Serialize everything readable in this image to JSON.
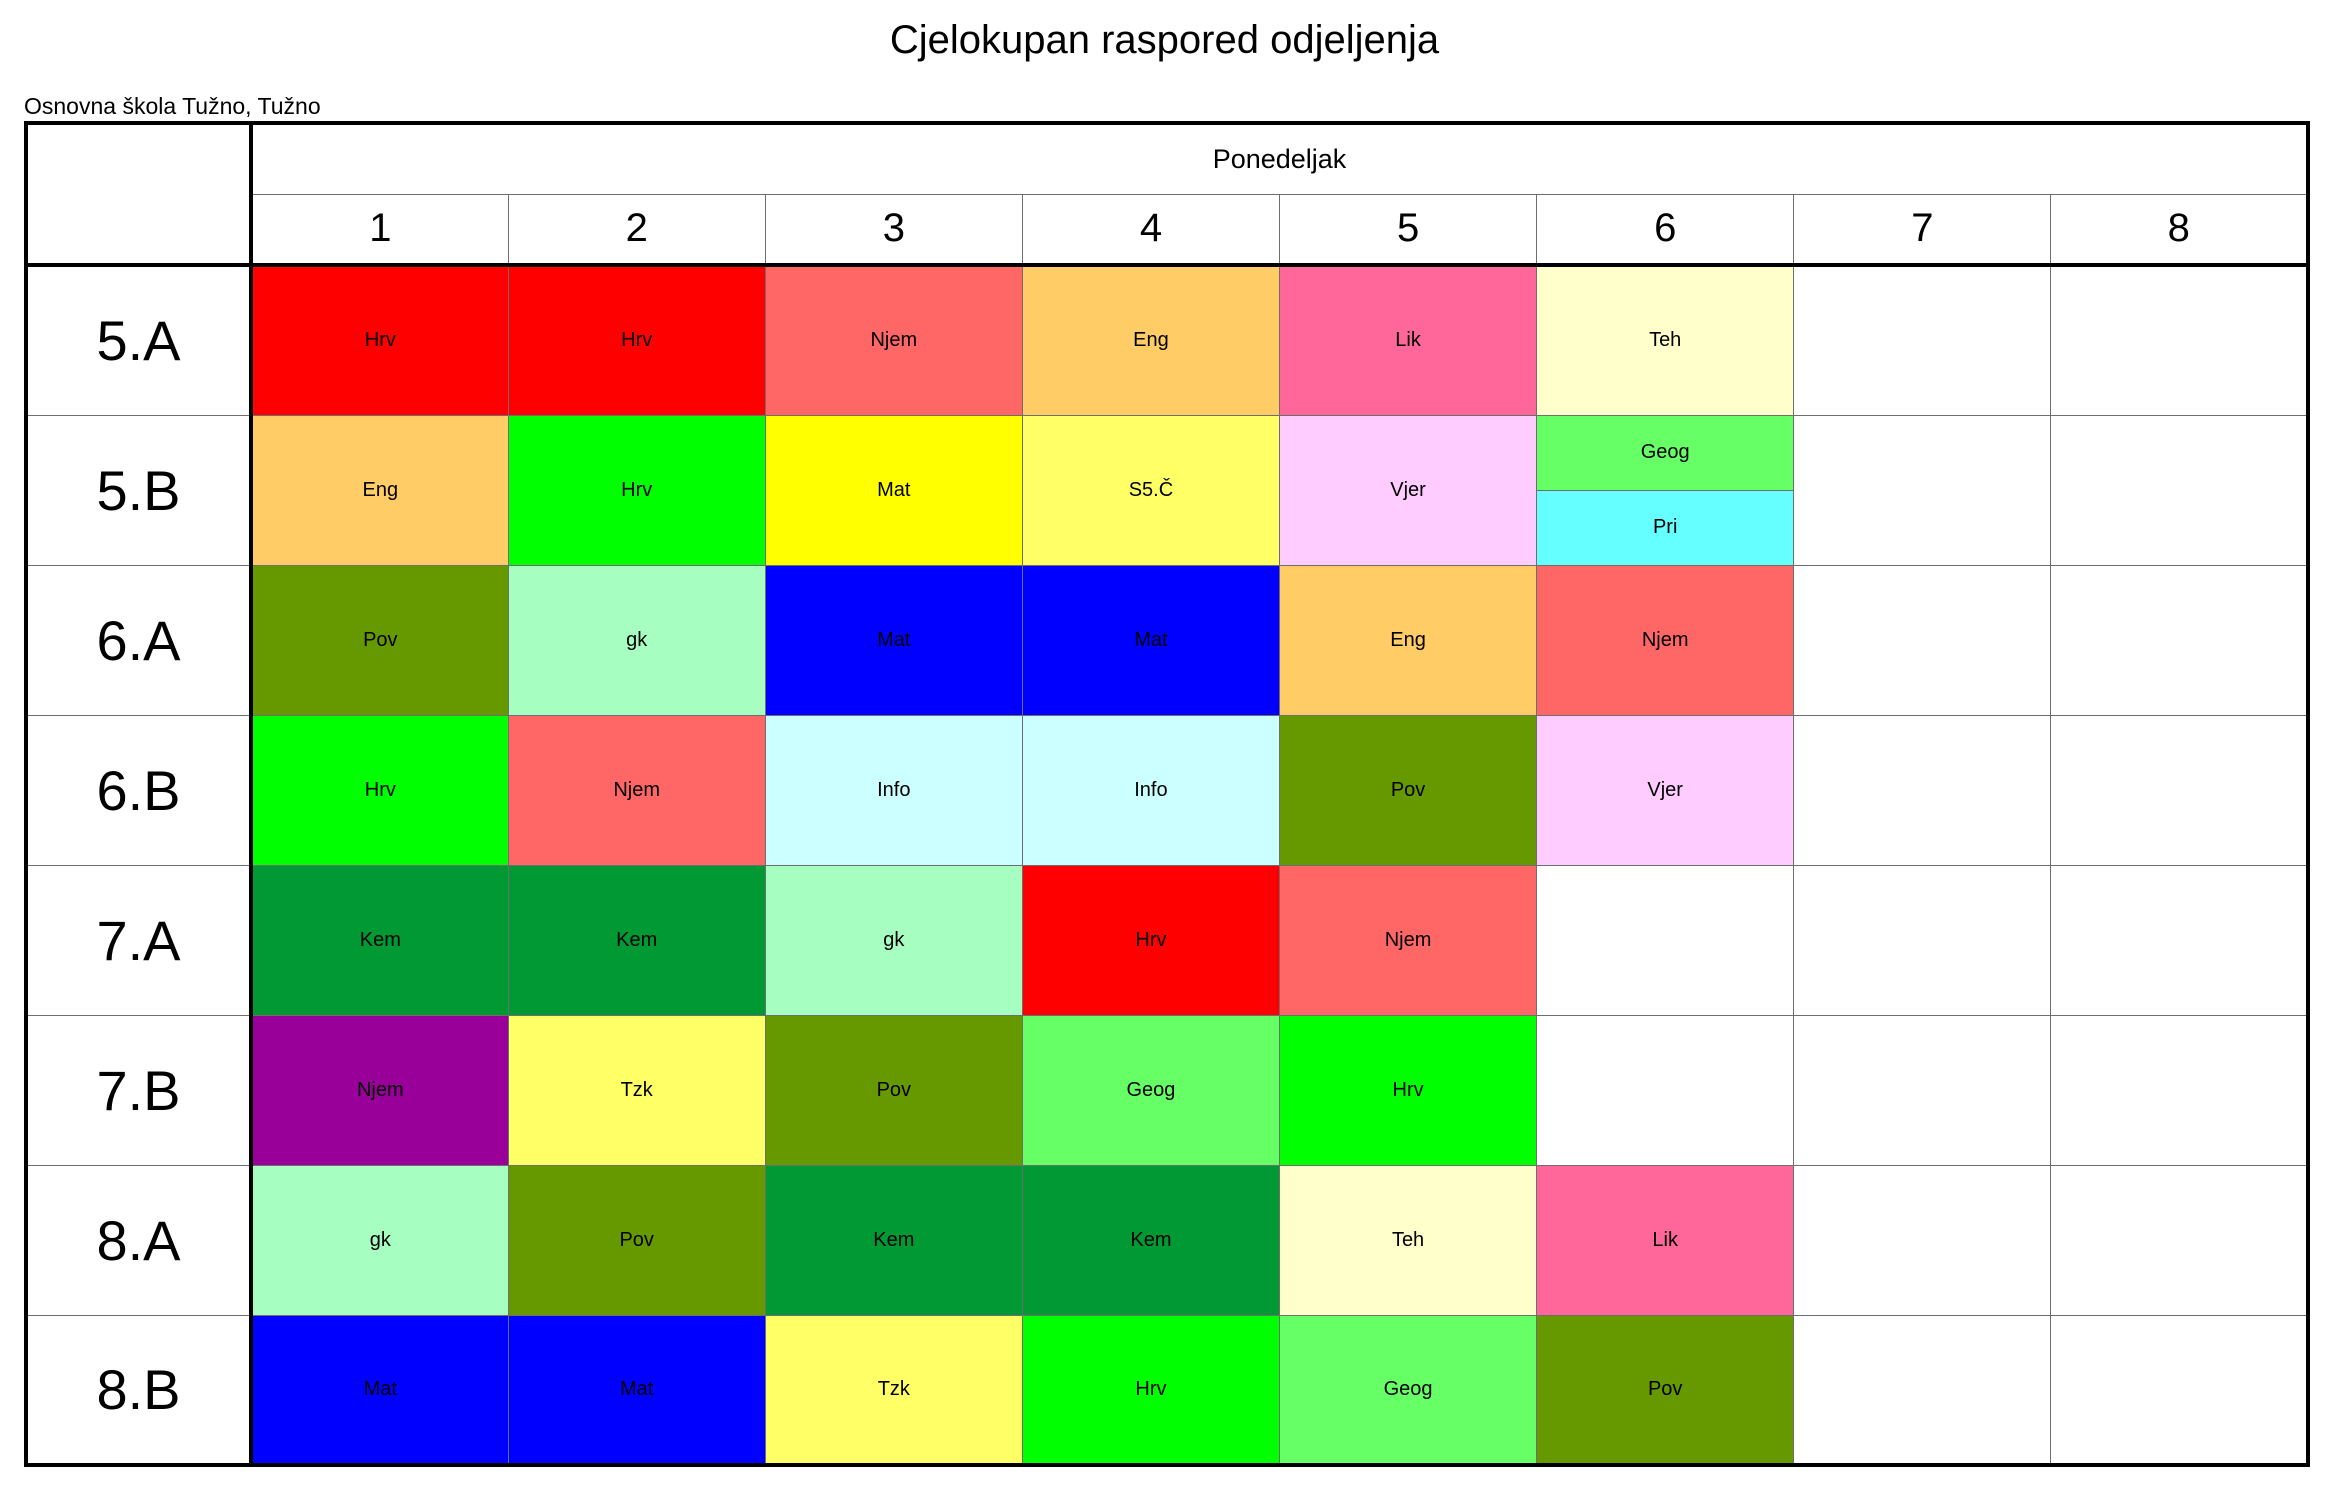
{
  "header": {
    "title": "Cjelokupan raspored odjeljenja",
    "school": "Osnovna škola Tužno, Tužno"
  },
  "timetable": {
    "day": "Ponedeljak",
    "periods": [
      "1",
      "2",
      "3",
      "4",
      "5",
      "6",
      "7",
      "8"
    ],
    "rows": [
      {
        "class": "5.A",
        "cells": [
          {
            "text": "Hrv",
            "color": "#ff0000"
          },
          {
            "text": "Hrv",
            "color": "#ff0000"
          },
          {
            "text": "Njem",
            "color": "#ff6666"
          },
          {
            "text": "Eng",
            "color": "#ffcc66"
          },
          {
            "text": "Lik",
            "color": "#ff6699"
          },
          {
            "text": "Teh",
            "color": "#ffffcc"
          },
          {
            "text": "",
            "color": ""
          },
          {
            "text": "",
            "color": ""
          }
        ]
      },
      {
        "class": "5.B",
        "cells": [
          {
            "text": "Eng",
            "color": "#ffcc66"
          },
          {
            "text": "Hrv",
            "color": "#00ff00"
          },
          {
            "text": "Mat",
            "color": "#ffff00"
          },
          {
            "text": "S5.Č",
            "color": "#ffff66"
          },
          {
            "text": "Vjer",
            "color": "#ffccff"
          },
          {
            "split": [
              {
                "text": "Geog",
                "color": "#66ff66"
              },
              {
                "text": "Pri",
                "color": "#66ffff"
              }
            ]
          },
          {
            "text": "",
            "color": ""
          },
          {
            "text": "",
            "color": ""
          }
        ]
      },
      {
        "class": "6.A",
        "cells": [
          {
            "text": "Pov",
            "color": "#669900"
          },
          {
            "text": "gk",
            "color": "#a6ffc0"
          },
          {
            "text": "Mat",
            "color": "#0000ff"
          },
          {
            "text": "Mat",
            "color": "#0000ff"
          },
          {
            "text": "Eng",
            "color": "#ffcc66"
          },
          {
            "text": "Njem",
            "color": "#ff6666"
          },
          {
            "text": "",
            "color": ""
          },
          {
            "text": "",
            "color": ""
          }
        ]
      },
      {
        "class": "6.B",
        "cells": [
          {
            "text": "Hrv",
            "color": "#00ff00"
          },
          {
            "text": "Njem",
            "color": "#ff6666"
          },
          {
            "text": "Info",
            "color": "#ccffff"
          },
          {
            "text": "Info",
            "color": "#ccffff"
          },
          {
            "text": "Pov",
            "color": "#669900"
          },
          {
            "text": "Vjer",
            "color": "#ffccff"
          },
          {
            "text": "",
            "color": ""
          },
          {
            "text": "",
            "color": ""
          }
        ]
      },
      {
        "class": "7.A",
        "cells": [
          {
            "text": "Kem",
            "color": "#009933"
          },
          {
            "text": "Kem",
            "color": "#009933"
          },
          {
            "text": "gk",
            "color": "#a6ffc0"
          },
          {
            "text": "Hrv",
            "color": "#ff0000"
          },
          {
            "text": "Njem",
            "color": "#ff6666"
          },
          {
            "text": "",
            "color": ""
          },
          {
            "text": "",
            "color": ""
          },
          {
            "text": "",
            "color": ""
          }
        ]
      },
      {
        "class": "7.B",
        "cells": [
          {
            "text": "Njem",
            "color": "#990099"
          },
          {
            "text": "Tzk",
            "color": "#ffff66"
          },
          {
            "text": "Pov",
            "color": "#669900"
          },
          {
            "text": "Geog",
            "color": "#66ff66"
          },
          {
            "text": "Hrv",
            "color": "#00ff00"
          },
          {
            "text": "",
            "color": ""
          },
          {
            "text": "",
            "color": ""
          },
          {
            "text": "",
            "color": ""
          }
        ]
      },
      {
        "class": "8.A",
        "cells": [
          {
            "text": "gk",
            "color": "#a6ffc0"
          },
          {
            "text": "Pov",
            "color": "#669900"
          },
          {
            "text": "Kem",
            "color": "#009933"
          },
          {
            "text": "Kem",
            "color": "#009933"
          },
          {
            "text": "Teh",
            "color": "#ffffcc"
          },
          {
            "text": "Lik",
            "color": "#ff6699"
          },
          {
            "text": "",
            "color": ""
          },
          {
            "text": "",
            "color": ""
          }
        ]
      },
      {
        "class": "8.B",
        "cells": [
          {
            "text": "Mat",
            "color": "#0000ff"
          },
          {
            "text": "Mat",
            "color": "#0000ff"
          },
          {
            "text": "Tzk",
            "color": "#ffff66"
          },
          {
            "text": "Hrv",
            "color": "#00ff00"
          },
          {
            "text": "Geog",
            "color": "#66ff66"
          },
          {
            "text": "Pov",
            "color": "#669900"
          },
          {
            "text": "",
            "color": ""
          },
          {
            "text": "",
            "color": ""
          }
        ]
      }
    ]
  }
}
